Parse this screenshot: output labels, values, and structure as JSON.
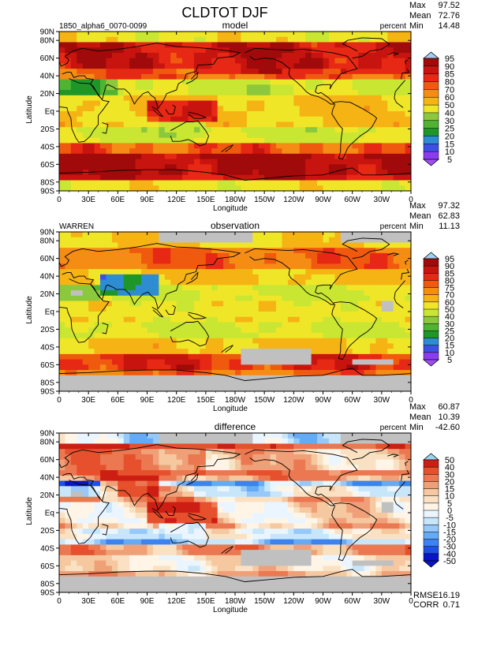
{
  "title": "CLDTOT DJF",
  "case_name": "1850_alpha6_0070-0099",
  "x_ticks": [
    "0",
    "30E",
    "60E",
    "90E",
    "120E",
    "150E",
    "180W",
    "150W",
    "120W",
    "90W",
    "60W",
    "30W",
    "0"
  ],
  "y_ticks": [
    "90N",
    "80N",
    "60N",
    "40N",
    "20N",
    "Eq",
    "20S",
    "40S",
    "60S",
    "80S",
    "90S"
  ],
  "y_tick_lats": [
    90,
    80,
    60,
    40,
    20,
    0,
    -20,
    -40,
    -60,
    -80,
    -90
  ],
  "x_axis_label": "Longitude",
  "y_axis_label": "Latitude",
  "panels": [
    {
      "id": "model",
      "title": "model",
      "source": "1850_alpha6_0070-0099",
      "units": "percent",
      "stats": [
        {
          "label": "Max",
          "value": "97.52"
        },
        {
          "label": "Mean",
          "value": "72.76"
        },
        {
          "label": "Min",
          "value": "14.48"
        }
      ],
      "colorbar": [
        "95",
        "90",
        "85",
        "80",
        "70",
        "60",
        "50",
        "40",
        "30",
        "25",
        "20",
        "15",
        "10",
        "5"
      ]
    },
    {
      "id": "observation",
      "title": "observation",
      "source": "WARREN",
      "units": "percent",
      "stats": [
        {
          "label": "Max",
          "value": "97.32"
        },
        {
          "label": "Mean",
          "value": "62.83"
        },
        {
          "label": "Min",
          "value": "11.13"
        }
      ],
      "colorbar": [
        "95",
        "90",
        "85",
        "80",
        "75",
        "70",
        "60",
        "50",
        "40",
        "30",
        "25",
        "20",
        "15",
        "10",
        "5"
      ]
    },
    {
      "id": "difference",
      "title": "difference",
      "source": "",
      "units": "percent",
      "stats": [
        {
          "label": "Max",
          "value": "60.87"
        },
        {
          "label": "Mean",
          "value": "10.39"
        },
        {
          "label": "Min",
          "value": "-42.60"
        }
      ],
      "bottom_stats": [
        {
          "label": "RMSE",
          "value": "16.19"
        },
        {
          "label": "CORR",
          "value": "0.71"
        }
      ],
      "colorbar": [
        "50",
        "40",
        "30",
        "20",
        "15",
        "10",
        "5",
        "0",
        "-5",
        "-10",
        "-15",
        "-20",
        "-30",
        "-40",
        "-50"
      ]
    }
  ],
  "colors": {
    "cloud_scale": [
      "#8c3cf0",
      "#3c50e6",
      "#2d8cd2",
      "#1e9628",
      "#50b432",
      "#8cc83c",
      "#c8e632",
      "#f0e628",
      "#f5b414",
      "#f58c14",
      "#f05a0f",
      "#e62814",
      "#c8140f",
      "#a00a0a"
    ],
    "diff_scale": [
      "#0a14c8",
      "#1e50e6",
      "#3c82f0",
      "#64aaf5",
      "#96c8fa",
      "#c8e6fa",
      "#ebf5ff",
      "#fff5e6",
      "#fae1c3",
      "#f5c8a0",
      "#f0a078",
      "#eb7850",
      "#e6502d",
      "#cd1e14"
    ],
    "missing": "#c0c0c0",
    "land_outline": "#000000"
  }
}
